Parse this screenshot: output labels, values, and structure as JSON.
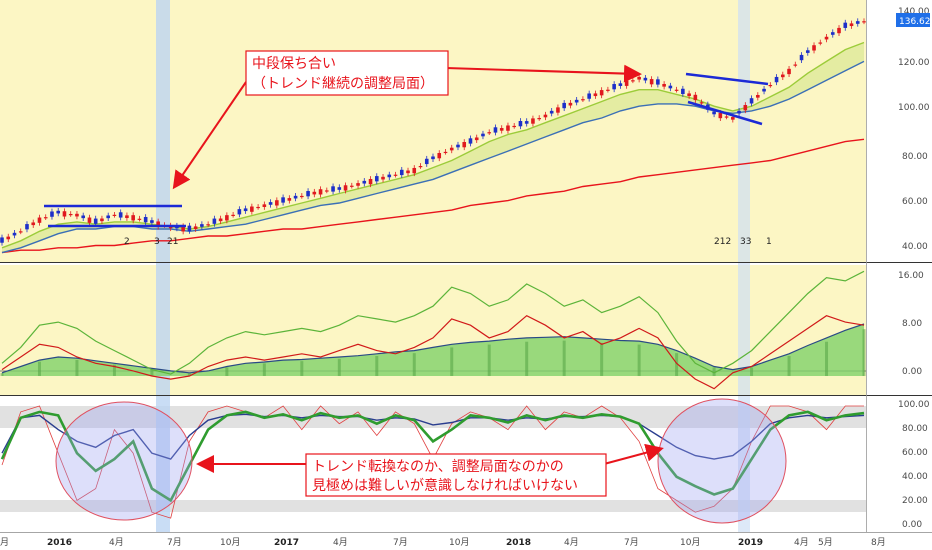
{
  "chart_data": {
    "type": "line",
    "x_tick_labels": [
      "月",
      "2016",
      "4月",
      "7月",
      "10月",
      "2017",
      "4月",
      "7月",
      "10月",
      "2018",
      "4月",
      "7月",
      "10月",
      "2019",
      "4月",
      "5月",
      "8月"
    ],
    "panels": [
      {
        "name": "price",
        "type": "candlestick",
        "y_ticks": [
          "40.00",
          "60.00",
          "80.00",
          "100.00",
          "120.00",
          "140.00"
        ],
        "ylim": [
          35,
          146
        ],
        "last_price_label": "136.62",
        "series": [
          {
            "values": [
              44,
              48,
              53,
              56,
              55,
              52,
              55,
              54,
              52,
              50,
              49,
              51,
              54,
              57,
              59,
              61,
              63,
              65,
              66,
              68,
              70,
              72,
              74,
              79,
              83,
              86,
              90,
              92,
              94,
              97,
              101,
              104,
              107,
              110,
              113,
              111,
              108,
              105,
              98,
              96,
              103,
              110,
              116,
              124,
              130,
              135,
              137
            ]
          },
          {
            "values": [
              41,
              44,
              48,
              51,
              52,
              51,
              52,
              52,
              51,
              50,
              49,
              50,
              52,
              54,
              56,
              58,
              60,
              62,
              64,
              66,
              68,
              70,
              72,
              75,
              78,
              82,
              86,
              89,
              91,
              94,
              97,
              100,
              103,
              106,
              108,
              108,
              106,
              104,
              101,
              99,
              101,
              105,
              109,
              115,
              120,
              125,
              128
            ]
          },
          {
            "values": [
              39,
              41,
              44,
              47,
              49,
              49,
              50,
              50,
              49,
              49,
              48,
              49,
              50,
              51,
              53,
              55,
              57,
              59,
              60,
              62,
              64,
              66,
              68,
              70,
              73,
              76,
              79,
              82,
              85,
              88,
              91,
              94,
              96,
              99,
              101,
              102,
              102,
              101,
              99,
              98,
              99,
              101,
              104,
              108,
              112,
              116,
              120
            ]
          },
          {
            "values": [
              39,
              40,
              40,
              41,
              41,
              42,
              42,
              43,
              44,
              44,
              45,
              46,
              46,
              47,
              48,
              49,
              49,
              50,
              51,
              52,
              53,
              54,
              55,
              56,
              57,
              59,
              60,
              61,
              63,
              64,
              65,
              67,
              68,
              69,
              71,
              72,
              73,
              74,
              75,
              76,
              77,
              78,
              80,
              82,
              84,
              86,
              87
            ]
          }
        ],
        "markers": [
          "2",
          "3",
          "21",
          "212",
          "33",
          "1"
        ]
      },
      {
        "name": "indicator",
        "y_ticks": [
          "0.00",
          "8.00",
          "16.00"
        ],
        "ylim": [
          -3,
          17.5
        ],
        "series": [
          {
            "values": [
              0.5,
              1.5,
              2.5,
              3.0,
              2.8,
              2.4,
              2.0,
              1.6,
              1.2,
              0.8,
              0.5,
              0.8,
              1.5,
              2.0,
              2.2,
              2.5,
              2.6,
              2.8,
              3.0,
              3.2,
              3.5,
              3.8,
              4.0,
              4.5,
              5.0,
              5.3,
              5.5,
              5.8,
              6.0,
              6.1,
              6.2,
              6.0,
              5.8,
              5.6,
              5.5,
              5.0,
              4.0,
              2.8,
              1.5,
              1.0,
              1.5,
              2.5,
              3.5,
              4.8,
              6.0,
              7.2,
              8.2
            ]
          },
          {
            "values": [
              1.0,
              3.0,
              5.0,
              4.5,
              3.0,
              2.0,
              1.5,
              0.8,
              0.0,
              -0.5,
              0.0,
              1.5,
              2.5,
              3.0,
              2.5,
              3.0,
              3.5,
              3.0,
              4.0,
              5.0,
              4.0,
              3.5,
              4.5,
              6.0,
              9.0,
              8.0,
              6.0,
              7.0,
              9.5,
              8.0,
              6.0,
              7.0,
              5.0,
              6.0,
              7.5,
              6.0,
              2.0,
              -0.5,
              -2.0,
              0.5,
              1.5,
              3.5,
              5.5,
              7.5,
              9.5,
              8.5,
              8.0
            ]
          },
          {
            "values": [
              2.0,
              4.5,
              8.0,
              8.5,
              7.5,
              5.5,
              4.0,
              2.5,
              1.0,
              0.3,
              2.0,
              4.5,
              6.0,
              7.0,
              6.5,
              7.0,
              7.5,
              7.0,
              8.0,
              9.5,
              9.0,
              8.5,
              9.5,
              11.0,
              14.0,
              13.0,
              11.0,
              12.0,
              14.5,
              13.0,
              11.0,
              12.0,
              10.0,
              11.0,
              12.5,
              10.0,
              5.5,
              2.0,
              0.5,
              2.0,
              4.0,
              7.0,
              10.0,
              13.0,
              15.5,
              15.0,
              16.5
            ]
          }
        ]
      },
      {
        "name": "oscillator",
        "y_ticks": [
          "0.00",
          "20.00",
          "40.00",
          "60.00",
          "80.00",
          "100.00"
        ],
        "ylim": [
          0,
          100
        ],
        "series": [
          {
            "values": [
              55,
              90,
              95,
              92,
              60,
              45,
              55,
              70,
              30,
              20,
              50,
              80,
              92,
              95,
              90,
              93,
              88,
              94,
              90,
              92,
              85,
              92,
              88,
              70,
              80,
              92,
              90,
              86,
              92,
              88,
              92,
              90,
              93,
              91,
              85,
              60,
              40,
              32,
              25,
              30,
              55,
              80,
              92,
              95,
              88,
              92,
              94
            ]
          },
          {
            "values": [
              60,
              90,
              92,
              80,
              70,
              65,
              75,
              80,
              60,
              55,
              75,
              88,
              92,
              93,
              91,
              92,
              90,
              92,
              91,
              91,
              88,
              90,
              89,
              84,
              86,
              90,
              90,
              88,
              90,
              89,
              91,
              91,
              92,
              91,
              85,
              75,
              65,
              58,
              55,
              58,
              70,
              85,
              90,
              92,
              90,
              91,
              92
            ]
          },
          {
            "values": [
              50,
              95,
              100,
              60,
              20,
              30,
              80,
              60,
              10,
              5,
              70,
              95,
              100,
              95,
              90,
              100,
              80,
              100,
              85,
              95,
              75,
              95,
              85,
              55,
              85,
              95,
              90,
              80,
              100,
              80,
              95,
              90,
              100,
              90,
              70,
              30,
              20,
              10,
              15,
              30,
              70,
              100,
              100,
              95,
              80,
              100,
              100
            ]
          }
        ]
      }
    ],
    "annotations": [
      {
        "text_lines": [
          "中段保ち合い",
          "（トレンド継続の調整局面）"
        ]
      },
      {
        "text_lines": [
          "トレンド転換なのか、調整局面なのかの",
          "見極めは難しいが意識しなければいけない"
        ]
      }
    ]
  }
}
